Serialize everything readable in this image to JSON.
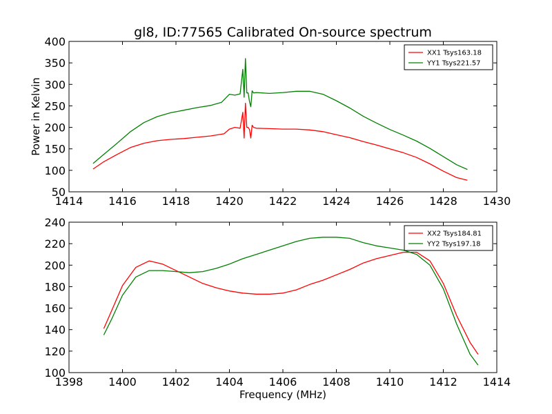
{
  "title": "gl8, ID:77565 Calibrated On-source spectrum",
  "colors": {
    "xx": "#ff0000",
    "yy": "#008000"
  },
  "chart_data": [
    {
      "type": "line",
      "xlabel": "",
      "ylabel": "Power in Kelvin",
      "xlim": [
        1414,
        1430
      ],
      "ylim": [
        50,
        400
      ],
      "xticks": [
        1414,
        1416,
        1418,
        1420,
        1422,
        1424,
        1426,
        1428,
        1430
      ],
      "yticks": [
        50,
        100,
        150,
        200,
        250,
        300,
        350,
        400
      ],
      "legend": "top-right",
      "series": [
        {
          "name": "XX1 Tsys163.18",
          "color": "#ff0000",
          "x": [
            1414.9,
            1415.3,
            1415.8,
            1416.3,
            1416.8,
            1417.3,
            1417.8,
            1418.3,
            1418.8,
            1419.3,
            1419.8,
            1420.0,
            1420.2,
            1420.4,
            1420.5,
            1420.55,
            1420.6,
            1420.65,
            1420.7,
            1420.75,
            1420.8,
            1420.85,
            1420.9,
            1421.0,
            1421.5,
            1422.0,
            1422.5,
            1423.0,
            1423.5,
            1424.0,
            1424.5,
            1425.0,
            1425.5,
            1426.0,
            1426.5,
            1427.0,
            1427.5,
            1428.0,
            1428.5,
            1428.9
          ],
          "y": [
            103,
            120,
            137,
            153,
            163,
            169,
            172,
            174,
            177,
            180,
            185,
            196,
            200,
            198,
            235,
            175,
            256,
            200,
            200,
            195,
            175,
            205,
            200,
            198,
            197,
            196,
            196,
            194,
            190,
            183,
            176,
            167,
            159,
            150,
            141,
            130,
            115,
            98,
            83,
            77
          ]
        },
        {
          "name": "YY1 Tsys221.57",
          "color": "#008000",
          "x": [
            1414.9,
            1415.3,
            1415.8,
            1416.3,
            1416.8,
            1417.3,
            1417.8,
            1418.3,
            1418.8,
            1419.3,
            1419.7,
            1420.0,
            1420.2,
            1420.4,
            1420.5,
            1420.55,
            1420.6,
            1420.65,
            1420.7,
            1420.75,
            1420.8,
            1420.85,
            1420.9,
            1421.0,
            1421.5,
            1422.0,
            1422.5,
            1423.0,
            1423.5,
            1424.0,
            1424.5,
            1425.0,
            1425.5,
            1426.0,
            1426.5,
            1427.0,
            1427.5,
            1428.0,
            1428.5,
            1428.9
          ],
          "y": [
            116,
            137,
            163,
            190,
            211,
            225,
            234,
            240,
            246,
            251,
            258,
            277,
            275,
            278,
            335,
            270,
            360,
            280,
            280,
            260,
            248,
            285,
            280,
            281,
            279,
            281,
            284,
            284,
            277,
            262,
            245,
            226,
            210,
            195,
            182,
            168,
            151,
            132,
            113,
            102
          ]
        }
      ]
    },
    {
      "type": "line",
      "xlabel": "Frequency (MHz)",
      "ylabel": "",
      "xlim": [
        1398,
        1414
      ],
      "ylim": [
        100,
        240
      ],
      "xticks": [
        1398,
        1400,
        1402,
        1404,
        1406,
        1408,
        1410,
        1412,
        1414
      ],
      "yticks": [
        100,
        120,
        140,
        160,
        180,
        200,
        220,
        240
      ],
      "legend": "top-right",
      "series": [
        {
          "name": "XX2 Tsys184.81",
          "color": "#ff0000",
          "x": [
            1399.3,
            1399.6,
            1400.0,
            1400.5,
            1401.0,
            1401.5,
            1402.0,
            1402.5,
            1403.0,
            1403.5,
            1404.0,
            1404.5,
            1405.0,
            1405.5,
            1406.0,
            1406.5,
            1407.0,
            1407.5,
            1408.0,
            1408.5,
            1409.0,
            1409.5,
            1410.0,
            1410.5,
            1411.0,
            1411.5,
            1412.0,
            1412.5,
            1413.0,
            1413.3
          ],
          "y": [
            141,
            158,
            181,
            198,
            204,
            201,
            195,
            189,
            183,
            179,
            176,
            174,
            173,
            173,
            174,
            177,
            182,
            186,
            191,
            196,
            202,
            206,
            209,
            212,
            212,
            204,
            183,
            153,
            128,
            117
          ]
        },
        {
          "name": "YY2 Tsys197.18",
          "color": "#008000",
          "x": [
            1399.3,
            1399.6,
            1400.0,
            1400.5,
            1401.0,
            1401.5,
            1402.0,
            1402.5,
            1403.0,
            1403.5,
            1404.0,
            1404.5,
            1405.0,
            1405.5,
            1406.0,
            1406.5,
            1407.0,
            1407.5,
            1408.0,
            1408.5,
            1409.0,
            1409.5,
            1410.0,
            1410.5,
            1411.0,
            1411.5,
            1412.0,
            1412.5,
            1413.0,
            1413.3
          ],
          "y": [
            135,
            150,
            172,
            189,
            195,
            195,
            194,
            193,
            194,
            197,
            201,
            206,
            210,
            214,
            218,
            222,
            225,
            226,
            226,
            225,
            221,
            218,
            216,
            214,
            210,
            200,
            178,
            145,
            117,
            107
          ]
        }
      ]
    }
  ]
}
